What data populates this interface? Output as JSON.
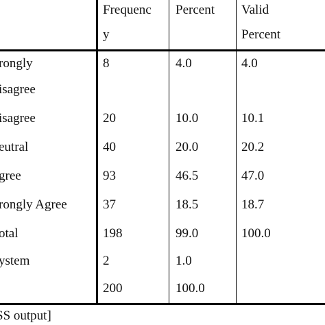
{
  "header": {
    "frequency_line1": "Frequenc",
    "frequency_line2": "y",
    "percent": "Percent",
    "valid_percent_line1": "Valid",
    "valid_percent_line2": "Percent"
  },
  "rows": [
    {
      "label_line1": "rongly",
      "label_line2": "isagree",
      "frequency": "8",
      "percent": "4.0",
      "valid_percent": "4.0"
    },
    {
      "label": "isagree",
      "frequency": "20",
      "percent": "10.0",
      "valid_percent": "10.1"
    },
    {
      "label": "eutral",
      "frequency": "40",
      "percent": "20.0",
      "valid_percent": "20.2"
    },
    {
      "label": "gree",
      "frequency": "93",
      "percent": "46.5",
      "valid_percent": "47.0"
    },
    {
      "label": "rongly Agree",
      "frequency": "37",
      "percent": "18.5",
      "valid_percent": "18.7"
    },
    {
      "label": "otal",
      "frequency": "198",
      "percent": "99.0",
      "valid_percent": "100.0"
    },
    {
      "label": "ystem",
      "frequency": "2",
      "percent": "1.0",
      "valid_percent": ""
    },
    {
      "label": "",
      "frequency": "200",
      "percent": "100.0",
      "valid_percent": ""
    }
  ],
  "footer": {
    "source": "SS output]"
  }
}
